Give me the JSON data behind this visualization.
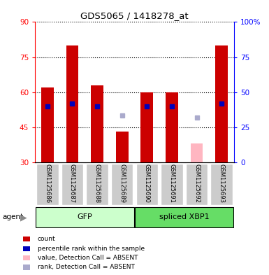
{
  "title": "GDS5065 / 1418278_at",
  "samples": [
    "GSM1125686",
    "GSM1125687",
    "GSM1125688",
    "GSM1125689",
    "GSM1125690",
    "GSM1125691",
    "GSM1125692",
    "GSM1125693"
  ],
  "red_values": [
    62,
    80,
    63,
    43,
    60,
    60,
    null,
    80
  ],
  "blue_values": [
    54,
    55,
    54,
    null,
    54,
    54,
    null,
    55
  ],
  "pink_values": [
    null,
    null,
    null,
    null,
    null,
    null,
    38,
    null
  ],
  "lightblue_values": [
    null,
    null,
    null,
    50,
    null,
    null,
    49,
    null
  ],
  "left_ylim": [
    30,
    90
  ],
  "right_ylim": [
    0,
    100
  ],
  "left_yticks": [
    30,
    45,
    60,
    75,
    90
  ],
  "right_yticks": [
    0,
    25,
    50,
    75,
    100
  ],
  "right_yticklabels": [
    "0",
    "25",
    "50",
    "75",
    "100%"
  ],
  "bar_color_red": "#CC0000",
  "bar_color_blue": "#0000BB",
  "bar_color_pink": "#FFB6C1",
  "bar_color_lightblue": "#AAAACC",
  "bar_bottom": 30,
  "bar_width": 0.5,
  "group_names": [
    "GFP",
    "spliced XBP1"
  ],
  "group_starts": [
    0,
    4
  ],
  "group_ends": [
    4,
    8
  ],
  "group_colors": [
    "#CCFFCC",
    "#66DD66"
  ],
  "legend_items": [
    {
      "label": "count",
      "color": "#CC0000"
    },
    {
      "label": "percentile rank within the sample",
      "color": "#0000BB"
    },
    {
      "label": "value, Detection Call = ABSENT",
      "color": "#FFB6C1"
    },
    {
      "label": "rank, Detection Call = ABSENT",
      "color": "#AAAACC"
    }
  ]
}
